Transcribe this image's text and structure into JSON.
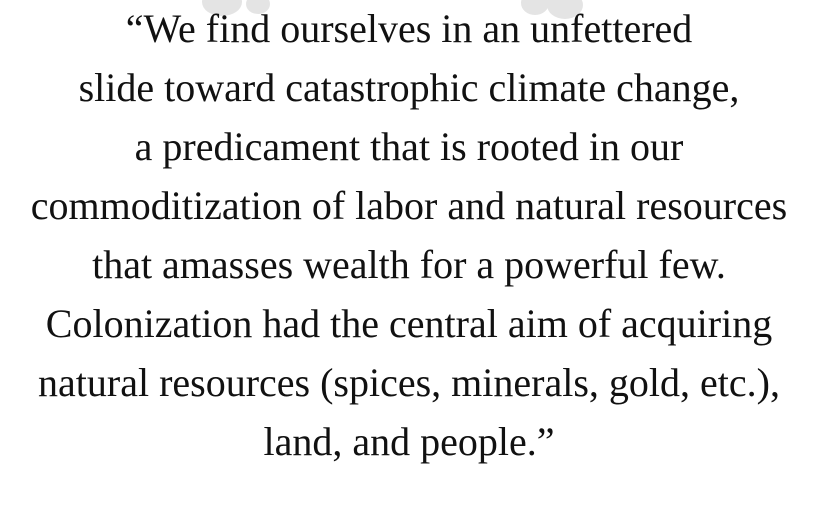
{
  "quote": {
    "lines": [
      "“We find ourselves in an unfettered",
      "slide toward catastrophic climate change,",
      "a predicament that is rooted in our",
      "commoditization of labor and natural resources",
      "that amasses wealth for a powerful few.",
      "Colonization had the central aim of acquiring",
      "natural resources (spices, minerals, gold, etc.),",
      "land, and people.”"
    ]
  }
}
